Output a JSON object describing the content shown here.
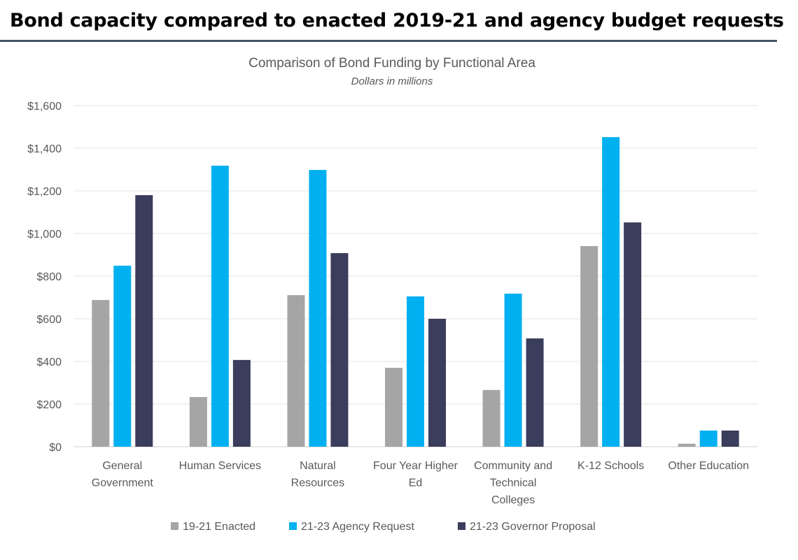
{
  "header": {
    "title": "Bond capacity compared to enacted 2019-21 and agency budget requests"
  },
  "chart_data": {
    "type": "bar",
    "title": "Comparison of Bond Funding by Functional Area",
    "subtitle": "Dollars in millions",
    "xlabel": "",
    "ylabel": "",
    "ylim": [
      0,
      1600
    ],
    "yticks": [
      0,
      200,
      400,
      600,
      800,
      1000,
      1200,
      1400,
      1600
    ],
    "ytick_labels": [
      "$0",
      "$200",
      "$400",
      "$600",
      "$800",
      "$1,000",
      "$1,200",
      "$1,400",
      "$1,600"
    ],
    "grid": true,
    "legend_position": "bottom",
    "categories": [
      [
        "General",
        "Government"
      ],
      [
        "Human Services"
      ],
      [
        "Natural",
        "Resources"
      ],
      [
        "Four Year Higher",
        "Ed"
      ],
      [
        "Community and",
        "Technical",
        "Colleges"
      ],
      [
        "K-12 Schools"
      ],
      [
        "Other Education"
      ]
    ],
    "series": [
      {
        "name": "19-21 Enacted",
        "color": "#a5a5a5",
        "values": [
          688,
          233,
          711,
          370,
          266,
          941,
          14
        ]
      },
      {
        "name": "21-23 Agency Request",
        "color": "#00b0f0",
        "values": [
          849,
          1318,
          1298,
          705,
          718,
          1452,
          76
        ]
      },
      {
        "name": "21-23 Governor Proposal",
        "color": "#3b3d5c",
        "values": [
          1180,
          407,
          908,
          600,
          508,
          1052,
          76
        ]
      }
    ]
  }
}
